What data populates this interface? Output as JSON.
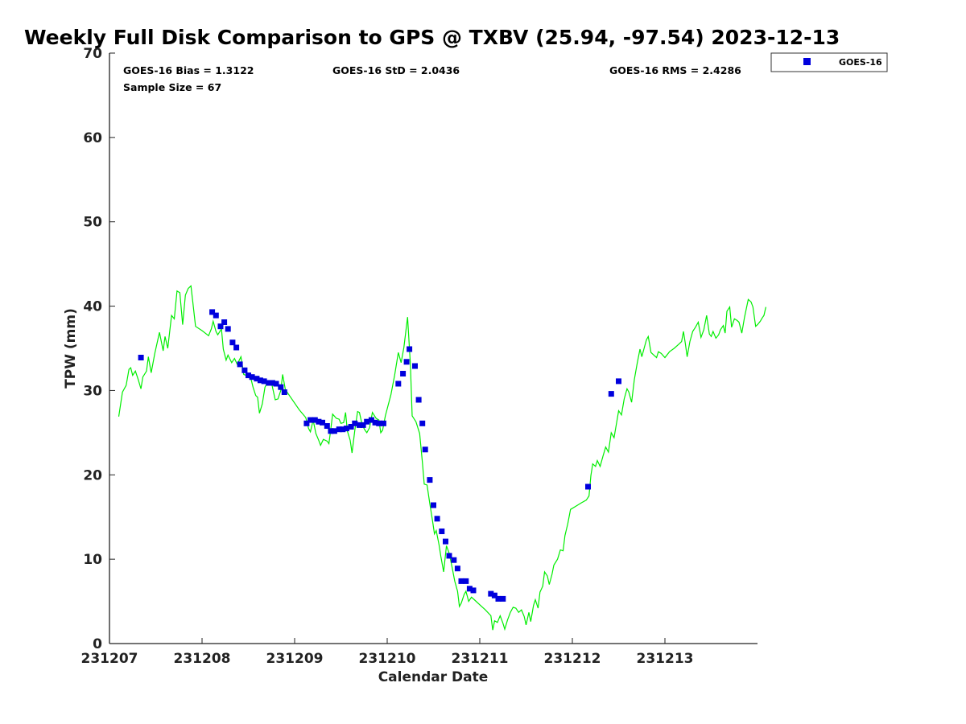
{
  "chart_data": {
    "type": "scatter",
    "title": "Weekly Full Disk Comparison to GPS @ TXBV (25.94, -97.54) 2023-12-13",
    "xlabel": "Calendar Date",
    "ylabel": "TPW (mm)",
    "xlim": [
      0,
      7
    ],
    "ylim": [
      0,
      70
    ],
    "x_ticks": [
      0,
      1,
      2,
      3,
      4,
      5,
      6
    ],
    "x_tick_labels": [
      "231207",
      "231208",
      "231209",
      "231210",
      "231211",
      "231212",
      "231213"
    ],
    "y_ticks": [
      0,
      10,
      20,
      30,
      40,
      50,
      60,
      70
    ],
    "y_tick_labels": [
      "0",
      "10",
      "20",
      "30",
      "40",
      "50",
      "60",
      "70"
    ],
    "stats": {
      "bias": "GOES-16 Bias = 1.3122",
      "std": "GOES-16 StD = 2.0436",
      "rms": "GOES-16 RMS = 2.4286",
      "sample": "Sample Size = 67"
    },
    "legend": {
      "position": "top-right",
      "entries": [
        "GOES-16"
      ]
    },
    "colors": {
      "line": "#00ee00",
      "markers": "#0000dd"
    },
    "series": [
      {
        "name": "GOES-16",
        "kind": "scatter",
        "points": [
          [
            0.34,
            33.9
          ],
          [
            1.11,
            39.3
          ],
          [
            1.15,
            38.9
          ],
          [
            1.2,
            37.6
          ],
          [
            1.24,
            38.1
          ],
          [
            1.28,
            37.3
          ],
          [
            1.33,
            35.7
          ],
          [
            1.37,
            35.1
          ],
          [
            1.41,
            33.1
          ],
          [
            1.46,
            32.4
          ],
          [
            1.5,
            31.8
          ],
          [
            1.54,
            31.6
          ],
          [
            1.59,
            31.4
          ],
          [
            1.63,
            31.2
          ],
          [
            1.67,
            31.1
          ],
          [
            1.72,
            30.9
          ],
          [
            1.76,
            30.9
          ],
          [
            1.8,
            30.8
          ],
          [
            1.85,
            30.4
          ],
          [
            1.89,
            29.8
          ],
          [
            2.13,
            26.1
          ],
          [
            2.17,
            26.5
          ],
          [
            2.22,
            26.5
          ],
          [
            2.26,
            26.3
          ],
          [
            2.3,
            26.2
          ],
          [
            2.35,
            25.8
          ],
          [
            2.39,
            25.2
          ],
          [
            2.43,
            25.2
          ],
          [
            2.48,
            25.4
          ],
          [
            2.52,
            25.4
          ],
          [
            2.56,
            25.5
          ],
          [
            2.61,
            25.7
          ],
          [
            2.65,
            26.1
          ],
          [
            2.7,
            25.9
          ],
          [
            2.74,
            25.9
          ],
          [
            2.78,
            26.3
          ],
          [
            2.83,
            26.5
          ],
          [
            2.87,
            26.2
          ],
          [
            2.91,
            26.1
          ],
          [
            2.96,
            26.1
          ],
          [
            3.12,
            30.8
          ],
          [
            3.17,
            32.0
          ],
          [
            3.21,
            33.4
          ],
          [
            3.24,
            34.9
          ],
          [
            3.3,
            32.9
          ],
          [
            3.34,
            28.9
          ],
          [
            3.38,
            26.1
          ],
          [
            3.41,
            23.0
          ],
          [
            3.46,
            19.4
          ],
          [
            3.5,
            16.4
          ],
          [
            3.54,
            14.8
          ],
          [
            3.59,
            13.3
          ],
          [
            3.63,
            12.1
          ],
          [
            3.67,
            10.4
          ],
          [
            3.72,
            9.9
          ],
          [
            3.76,
            8.9
          ],
          [
            3.8,
            7.4
          ],
          [
            3.85,
            7.4
          ],
          [
            3.89,
            6.5
          ],
          [
            3.93,
            6.3
          ],
          [
            4.12,
            5.9
          ],
          [
            4.16,
            5.7
          ],
          [
            4.2,
            5.3
          ],
          [
            4.25,
            5.3
          ],
          [
            5.17,
            18.6
          ],
          [
            5.42,
            29.6
          ],
          [
            5.5,
            31.1
          ]
        ]
      },
      {
        "name": "",
        "kind": "line",
        "points": [
          [
            0.1,
            26.9
          ],
          [
            0.14,
            29.8
          ],
          [
            0.18,
            30.6
          ],
          [
            0.21,
            32.5
          ],
          [
            0.23,
            32.7
          ],
          [
            0.25,
            31.8
          ],
          [
            0.28,
            32.3
          ],
          [
            0.31,
            31.3
          ],
          [
            0.34,
            30.2
          ],
          [
            0.36,
            31.6
          ],
          [
            0.4,
            32.3
          ],
          [
            0.42,
            34.0
          ],
          [
            0.45,
            32.1
          ],
          [
            0.49,
            34.4
          ],
          [
            0.54,
            36.9
          ],
          [
            0.58,
            34.7
          ],
          [
            0.6,
            36.4
          ],
          [
            0.63,
            35.0
          ],
          [
            0.67,
            38.9
          ],
          [
            0.7,
            38.5
          ],
          [
            0.73,
            41.8
          ],
          [
            0.76,
            41.6
          ],
          [
            0.79,
            37.8
          ],
          [
            0.82,
            41.3
          ],
          [
            0.85,
            42.1
          ],
          [
            0.88,
            42.4
          ],
          [
            0.9,
            40.5
          ],
          [
            0.93,
            37.6
          ],
          [
            1.0,
            37.1
          ],
          [
            1.07,
            36.5
          ],
          [
            1.1,
            37.3
          ],
          [
            1.12,
            38.2
          ],
          [
            1.15,
            37.0
          ],
          [
            1.17,
            36.6
          ],
          [
            1.21,
            37.3
          ],
          [
            1.23,
            34.9
          ],
          [
            1.26,
            33.6
          ],
          [
            1.28,
            34.2
          ],
          [
            1.32,
            33.3
          ],
          [
            1.35,
            33.8
          ],
          [
            1.38,
            33.1
          ],
          [
            1.42,
            34.0
          ],
          [
            1.45,
            31.9
          ],
          [
            1.5,
            31.7
          ],
          [
            1.53,
            31.3
          ],
          [
            1.55,
            30.4
          ],
          [
            1.58,
            29.4
          ],
          [
            1.6,
            29.2
          ],
          [
            1.62,
            27.3
          ],
          [
            1.65,
            28.4
          ],
          [
            1.68,
            30.4
          ],
          [
            1.71,
            31.0
          ],
          [
            1.75,
            30.9
          ],
          [
            1.79,
            28.9
          ],
          [
            1.82,
            29.0
          ],
          [
            1.85,
            30.0
          ],
          [
            1.87,
            31.9
          ],
          [
            1.9,
            30.1
          ],
          [
            1.95,
            29.3
          ],
          [
            2.05,
            27.7
          ],
          [
            2.12,
            26.8
          ],
          [
            2.15,
            25.5
          ],
          [
            2.17,
            25.1
          ],
          [
            2.2,
            26.5
          ],
          [
            2.23,
            24.9
          ],
          [
            2.26,
            24.1
          ],
          [
            2.28,
            23.5
          ],
          [
            2.31,
            24.2
          ],
          [
            2.35,
            24.0
          ],
          [
            2.37,
            23.7
          ],
          [
            2.39,
            25.4
          ],
          [
            2.41,
            27.2
          ],
          [
            2.45,
            26.7
          ],
          [
            2.48,
            26.6
          ],
          [
            2.5,
            26.1
          ],
          [
            2.53,
            26.2
          ],
          [
            2.55,
            27.4
          ],
          [
            2.57,
            25.2
          ],
          [
            2.6,
            24.1
          ],
          [
            2.62,
            22.6
          ],
          [
            2.65,
            25.3
          ],
          [
            2.68,
            27.5
          ],
          [
            2.7,
            27.4
          ],
          [
            2.73,
            25.9
          ],
          [
            2.76,
            25.3
          ],
          [
            2.78,
            25.0
          ],
          [
            2.81,
            25.6
          ],
          [
            2.84,
            27.4
          ],
          [
            2.88,
            26.7
          ],
          [
            2.91,
            26.5
          ],
          [
            2.93,
            25.0
          ],
          [
            2.95,
            25.3
          ],
          [
            2.98,
            27.0
          ],
          [
            3.04,
            29.5
          ],
          [
            3.08,
            31.8
          ],
          [
            3.12,
            34.5
          ],
          [
            3.15,
            33.3
          ],
          [
            3.18,
            35.1
          ],
          [
            3.22,
            38.7
          ],
          [
            3.25,
            33.1
          ],
          [
            3.27,
            27.0
          ],
          [
            3.31,
            26.3
          ],
          [
            3.35,
            24.9
          ],
          [
            3.38,
            21.5
          ],
          [
            3.4,
            18.9
          ],
          [
            3.43,
            18.8
          ],
          [
            3.46,
            16.6
          ],
          [
            3.49,
            14.5
          ],
          [
            3.51,
            13.0
          ],
          [
            3.53,
            13.4
          ],
          [
            3.56,
            11.7
          ],
          [
            3.58,
            10.3
          ],
          [
            3.61,
            8.5
          ],
          [
            3.64,
            11.6
          ],
          [
            3.67,
            10.7
          ],
          [
            3.7,
            9.1
          ],
          [
            3.73,
            7.4
          ],
          [
            3.76,
            6.2
          ],
          [
            3.78,
            4.4
          ],
          [
            3.8,
            4.8
          ],
          [
            3.83,
            5.8
          ],
          [
            3.85,
            6.2
          ],
          [
            3.88,
            5.0
          ],
          [
            3.91,
            5.5
          ],
          [
            3.95,
            5.1
          ],
          [
            4.0,
            4.6
          ],
          [
            4.06,
            4.0
          ],
          [
            4.12,
            3.3
          ],
          [
            4.14,
            1.6
          ],
          [
            4.16,
            2.7
          ],
          [
            4.19,
            2.5
          ],
          [
            4.22,
            3.3
          ],
          [
            4.25,
            2.4
          ],
          [
            4.27,
            1.7
          ],
          [
            4.3,
            2.8
          ],
          [
            4.33,
            3.7
          ],
          [
            4.36,
            4.3
          ],
          [
            4.39,
            4.2
          ],
          [
            4.42,
            3.7
          ],
          [
            4.45,
            4.0
          ],
          [
            4.48,
            3.2
          ],
          [
            4.5,
            2.2
          ],
          [
            4.53,
            3.7
          ],
          [
            4.55,
            2.6
          ],
          [
            4.58,
            4.5
          ],
          [
            4.6,
            5.2
          ],
          [
            4.63,
            4.2
          ],
          [
            4.65,
            6.1
          ],
          [
            4.68,
            6.8
          ],
          [
            4.7,
            8.5
          ],
          [
            4.73,
            8.0
          ],
          [
            4.75,
            7.0
          ],
          [
            4.78,
            8.2
          ],
          [
            4.8,
            9.3
          ],
          [
            4.84,
            10.0
          ],
          [
            4.87,
            11.1
          ],
          [
            4.9,
            11.0
          ],
          [
            4.92,
            12.8
          ],
          [
            4.95,
            14.2
          ],
          [
            4.98,
            15.9
          ],
          [
            5.04,
            16.3
          ],
          [
            5.1,
            16.7
          ],
          [
            5.15,
            17.0
          ],
          [
            5.18,
            17.5
          ],
          [
            5.2,
            19.9
          ],
          [
            5.22,
            21.3
          ],
          [
            5.25,
            21.0
          ],
          [
            5.27,
            21.7
          ],
          [
            5.3,
            21.0
          ],
          [
            5.33,
            22.2
          ],
          [
            5.36,
            23.3
          ],
          [
            5.39,
            22.7
          ],
          [
            5.42,
            25.0
          ],
          [
            5.45,
            24.4
          ],
          [
            5.48,
            26.3
          ],
          [
            5.5,
            27.6
          ],
          [
            5.53,
            27.1
          ],
          [
            5.56,
            29.0
          ],
          [
            5.59,
            30.2
          ],
          [
            5.61,
            29.8
          ],
          [
            5.64,
            28.6
          ],
          [
            5.67,
            31.3
          ],
          [
            5.7,
            33.2
          ],
          [
            5.73,
            34.9
          ],
          [
            5.75,
            34.0
          ],
          [
            5.78,
            35.2
          ],
          [
            5.8,
            36.0
          ],
          [
            5.82,
            36.4
          ],
          [
            5.85,
            34.5
          ],
          [
            5.88,
            34.2
          ],
          [
            5.91,
            33.9
          ],
          [
            5.93,
            34.6
          ],
          [
            5.96,
            34.4
          ],
          [
            6.0,
            33.9
          ],
          [
            6.05,
            34.6
          ],
          [
            6.1,
            35.0
          ],
          [
            6.15,
            35.5
          ],
          [
            6.18,
            35.8
          ],
          [
            6.2,
            37.0
          ],
          [
            6.22,
            35.6
          ],
          [
            6.24,
            34.0
          ],
          [
            6.27,
            35.8
          ],
          [
            6.3,
            37.0
          ],
          [
            6.33,
            37.5
          ],
          [
            6.36,
            38.1
          ],
          [
            6.39,
            36.3
          ],
          [
            6.42,
            37.2
          ],
          [
            6.45,
            38.9
          ],
          [
            6.48,
            36.7
          ],
          [
            6.5,
            36.4
          ],
          [
            6.52,
            37.0
          ],
          [
            6.55,
            36.2
          ],
          [
            6.58,
            36.6
          ],
          [
            6.6,
            37.2
          ],
          [
            6.63,
            37.7
          ],
          [
            6.65,
            36.8
          ],
          [
            6.67,
            39.4
          ],
          [
            6.7,
            39.9
          ],
          [
            6.72,
            37.5
          ],
          [
            6.75,
            38.5
          ],
          [
            6.78,
            38.3
          ],
          [
            6.8,
            38.1
          ],
          [
            6.83,
            36.8
          ],
          [
            6.86,
            38.7
          ],
          [
            6.9,
            40.8
          ],
          [
            6.93,
            40.5
          ],
          [
            6.95,
            39.9
          ],
          [
            6.98,
            37.6
          ],
          [
            7.0,
            37.8
          ],
          [
            7.03,
            38.2
          ],
          [
            7.05,
            38.6
          ],
          [
            7.07,
            38.9
          ],
          [
            7.09,
            39.9
          ]
        ]
      }
    ]
  }
}
